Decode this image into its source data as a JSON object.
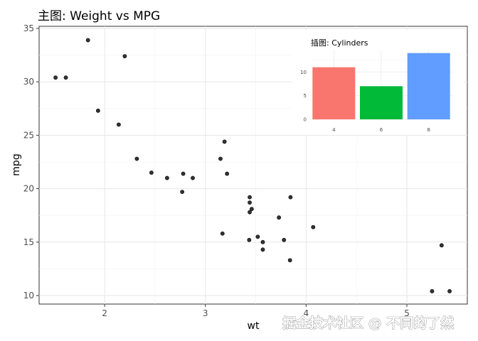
{
  "chart_data": [
    {
      "type": "scatter",
      "title": "主图: Weight vs MPG",
      "xlabel": "wt",
      "ylabel": "mpg",
      "xlim": [
        1.35,
        5.6
      ],
      "ylim": [
        9.2,
        35.2
      ],
      "xticks": [
        2,
        3,
        4,
        5
      ],
      "yticks": [
        10,
        15,
        20,
        25,
        30,
        35
      ],
      "grid": true,
      "points": [
        {
          "x": 2.62,
          "y": 21.0
        },
        {
          "x": 2.875,
          "y": 21.0
        },
        {
          "x": 2.32,
          "y": 22.8
        },
        {
          "x": 3.215,
          "y": 21.4
        },
        {
          "x": 3.44,
          "y": 18.7
        },
        {
          "x": 3.46,
          "y": 18.1
        },
        {
          "x": 3.57,
          "y": 14.3
        },
        {
          "x": 3.19,
          "y": 24.4
        },
        {
          "x": 3.15,
          "y": 22.8
        },
        {
          "x": 3.44,
          "y": 19.2
        },
        {
          "x": 3.44,
          "y": 17.8
        },
        {
          "x": 4.07,
          "y": 16.4
        },
        {
          "x": 3.73,
          "y": 17.3
        },
        {
          "x": 3.78,
          "y": 15.2
        },
        {
          "x": 5.25,
          "y": 10.4
        },
        {
          "x": 5.424,
          "y": 10.4
        },
        {
          "x": 5.345,
          "y": 14.7
        },
        {
          "x": 2.2,
          "y": 32.4
        },
        {
          "x": 1.615,
          "y": 30.4
        },
        {
          "x": 1.835,
          "y": 33.9
        },
        {
          "x": 2.465,
          "y": 21.5
        },
        {
          "x": 3.52,
          "y": 15.5
        },
        {
          "x": 3.435,
          "y": 15.2
        },
        {
          "x": 3.84,
          "y": 13.3
        },
        {
          "x": 3.845,
          "y": 19.2
        },
        {
          "x": 1.935,
          "y": 27.3
        },
        {
          "x": 2.14,
          "y": 26.0
        },
        {
          "x": 1.513,
          "y": 30.4
        },
        {
          "x": 3.17,
          "y": 15.8
        },
        {
          "x": 2.77,
          "y": 19.7
        },
        {
          "x": 3.57,
          "y": 15.0
        },
        {
          "x": 2.78,
          "y": 21.4
        }
      ]
    },
    {
      "type": "bar",
      "title": "插图: Cylinders",
      "categories": [
        "4",
        "6",
        "8"
      ],
      "values": [
        11,
        7,
        14
      ],
      "colors": [
        "#F8766D",
        "#00BA38",
        "#619CFF"
      ],
      "ylim": [
        0,
        14.7
      ],
      "yticks": [
        0,
        5,
        10
      ],
      "grid": true,
      "legend": "none",
      "placement": "top-right"
    }
  ],
  "watermark": "掘金技术社区 @ 不同的了然"
}
